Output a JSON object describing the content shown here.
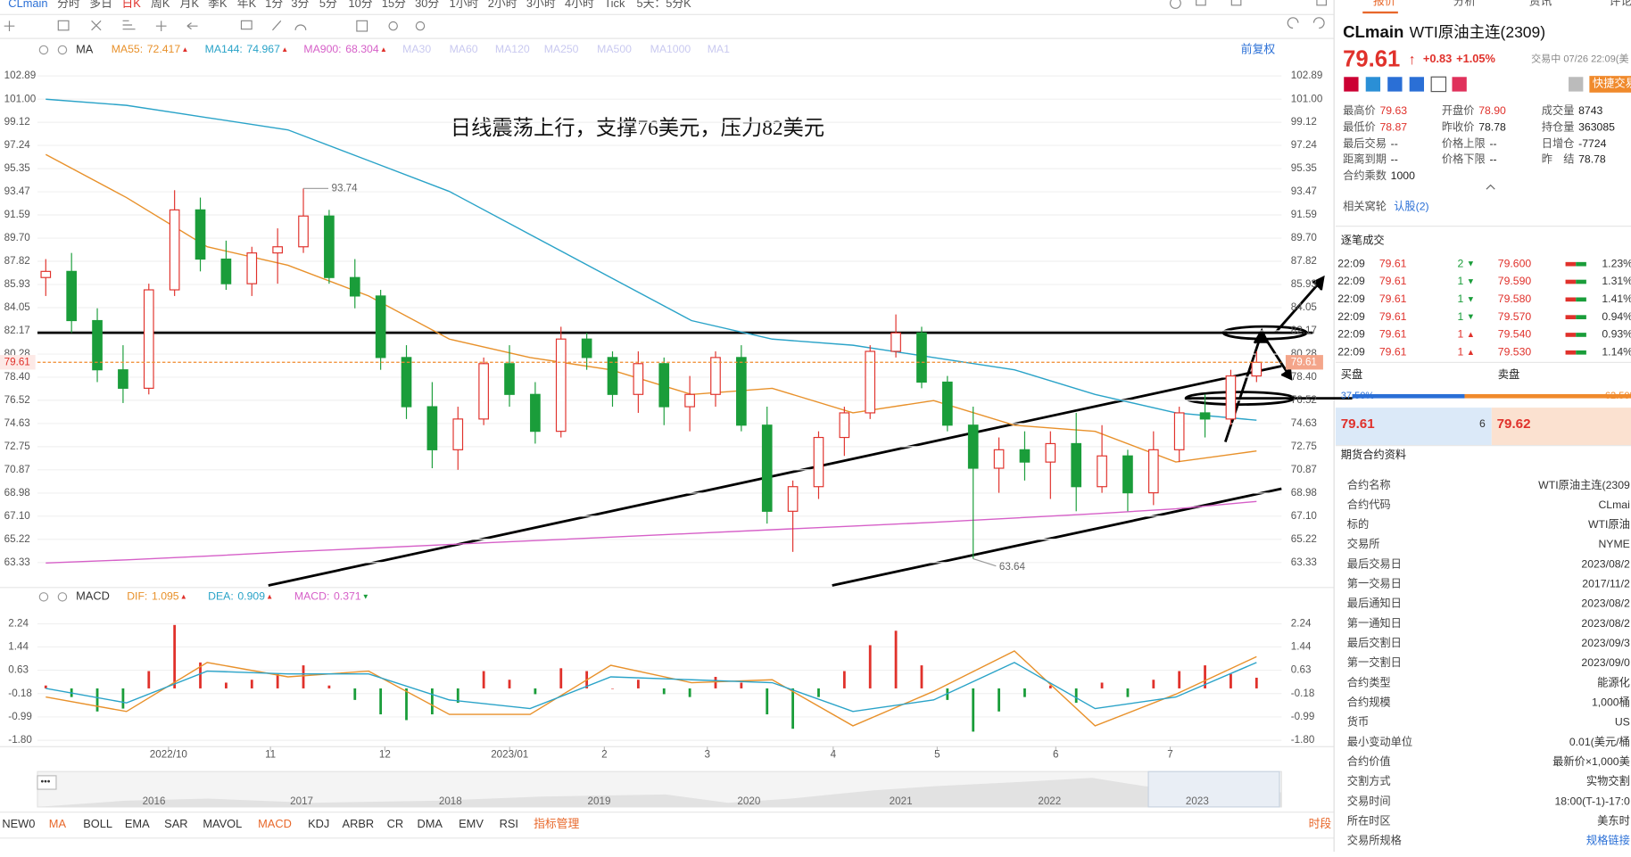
{
  "toolbar": {
    "symbol": "CLmain",
    "periods": [
      "分时",
      "多日",
      "日K",
      "周K",
      "月K",
      "季K",
      "年K",
      "1分",
      "3分",
      "5分",
      "10分",
      "15分",
      "30分",
      "1小时",
      "2小时",
      "3小时",
      "4小时",
      "Tick",
      "5天：5分K"
    ]
  },
  "price_panel": {
    "indicator": "MA",
    "ma_legend": [
      {
        "name": "MA55:",
        "value": 72.417,
        "trend": "▲",
        "color": "#e8912b",
        "values": [
          96.5,
          93,
          89,
          87.5,
          85,
          81.5,
          80,
          79,
          77,
          77.5,
          75.5,
          76.5,
          74.5,
          74,
          71.5,
          72.4
        ]
      },
      {
        "name": "MA144:",
        "value": 74.967,
        "trend": "▲",
        "color": "#2aa3c8",
        "values": [
          101,
          100.5,
          99.5,
          98.5,
          96,
          93.5,
          90,
          86.5,
          83,
          81.5,
          81,
          80,
          79,
          77,
          75.5,
          74.9
        ]
      },
      {
        "name": "MA900:",
        "value": 68.304,
        "trend": "▲",
        "color": "#d660c8",
        "values": [
          63.3,
          63.55,
          63.85,
          64.2,
          64.5,
          64.8,
          65.1,
          65.4,
          65.7,
          66,
          66.3,
          66.6,
          66.95,
          67.3,
          67.7,
          68.3
        ]
      }
    ],
    "ma_inactive": [
      "MA30",
      "MA60",
      "MA120",
      "MA250",
      "MA500",
      "MA1000",
      "MA1"
    ],
    "adjust": "前复权",
    "annotation": "日线震荡上行，支撑76美元，压力82美元",
    "high_label": 93.74,
    "low_label": 63.64,
    "last_price": 79.61,
    "ylim": [
      61.47,
      103.99
    ],
    "yticks": [
      102.89,
      {
        "value": 101,
        "label": "101.00"
      },
      99.12,
      97.24,
      95.35,
      93.47,
      91.59,
      {
        "value": 89.7,
        "label": "89.70"
      },
      87.82,
      85.93,
      84.05,
      82.17,
      80.28,
      {
        "value": 78.4,
        "label": "78.40"
      },
      76.52,
      74.63,
      72.75,
      70.87,
      68.98,
      {
        "value": 67.1,
        "label": "67.10"
      },
      65.22,
      63.33
    ],
    "time_labels": [
      "2022/10",
      "11",
      "12",
      "2023/01",
      "2",
      "3",
      "4",
      "5",
      "6",
      "7"
    ],
    "candles": [
      [
        86.5,
        88,
        85,
        87
      ],
      [
        87,
        88.5,
        82,
        83
      ],
      [
        83,
        84,
        78,
        79
      ],
      [
        79,
        81,
        76.3,
        77.5
      ],
      [
        77.5,
        86,
        77,
        85.5
      ],
      [
        85.5,
        93.6,
        85,
        92
      ],
      [
        92,
        93,
        87,
        88
      ],
      [
        88,
        89.5,
        85.5,
        86
      ],
      [
        86,
        89,
        85,
        88.5
      ],
      [
        88.5,
        90.5,
        86,
        89
      ],
      [
        89,
        93.74,
        88.5,
        91.5
      ],
      [
        91.5,
        92,
        86,
        86.5
      ],
      [
        86.5,
        88,
        84,
        85
      ],
      [
        85,
        85.5,
        79,
        80
      ],
      [
        80,
        81,
        75,
        76
      ],
      [
        76,
        78,
        71,
        72.5
      ],
      [
        72.5,
        76,
        70.87,
        75
      ],
      [
        75,
        80,
        74.5,
        79.5
      ],
      [
        79.5,
        81,
        76,
        77
      ],
      [
        77,
        78,
        73,
        74
      ],
      [
        74,
        82.5,
        73.5,
        81.5
      ],
      [
        81.5,
        82,
        79,
        80
      ],
      [
        80,
        80.5,
        76,
        77
      ],
      [
        77,
        80.5,
        75.5,
        79.5
      ],
      [
        79.5,
        80,
        74.5,
        76
      ],
      [
        76,
        78.5,
        74,
        77
      ],
      [
        77,
        80.5,
        76,
        80
      ],
      [
        80,
        81,
        74,
        74.5
      ],
      [
        74.5,
        76,
        66.5,
        67.5
      ],
      [
        67.5,
        70,
        64.2,
        69.5
      ],
      [
        69.5,
        74,
        68.5,
        73.5
      ],
      [
        73.5,
        76,
        72,
        75.5
      ],
      [
        75.5,
        81,
        75,
        80.5
      ],
      [
        80.5,
        83.5,
        80,
        82
      ],
      [
        82,
        82.5,
        77.5,
        78
      ],
      [
        78,
        78.5,
        74,
        74.5
      ],
      [
        74.5,
        76,
        63.64,
        71
      ],
      [
        71,
        73.5,
        69,
        72.5
      ],
      [
        72.5,
        74,
        70,
        71.5
      ],
      [
        71.5,
        74,
        68.5,
        73
      ],
      [
        73,
        75.5,
        67.5,
        69.5
      ],
      [
        69.5,
        74.5,
        69,
        72
      ],
      [
        72,
        72.5,
        67.5,
        69
      ],
      [
        69,
        74,
        68,
        72.5
      ],
      [
        72.5,
        76,
        71.5,
        75.5
      ],
      [
        75.5,
        77,
        73.5,
        75
      ],
      [
        75,
        79,
        74.5,
        78.5
      ],
      [
        78.5,
        80.5,
        78,
        79.61
      ]
    ]
  },
  "macd_panel": {
    "name": "MACD",
    "legend": [
      {
        "name": "DIF:",
        "value": 1.095,
        "trend": "▲",
        "color": "#e8912b",
        "values": [
          -0.3,
          -0.8,
          0.9,
          0.4,
          0.6,
          -0.9,
          -0.9,
          0.8,
          0.2,
          0.3,
          -1.3,
          -0.1,
          1.3,
          -1.3,
          -0.2,
          1.1
        ]
      },
      {
        "name": "DEA:",
        "value": 0.909,
        "trend": "▲",
        "color": "#2aa3c8",
        "values": [
          0,
          -0.5,
          0.6,
          0.5,
          0.5,
          -0.4,
          -0.7,
          0.4,
          0.3,
          0.2,
          -0.8,
          -0.4,
          0.9,
          -0.7,
          -0.3,
          0.9
        ]
      },
      {
        "name": "MACD:",
        "value": 0.371,
        "trend": "▼",
        "color": "#d660c8",
        "histogram": [
          0.1,
          -0.3,
          -0.8,
          -0.7,
          0.6,
          2.2,
          0.9,
          0.2,
          0.3,
          0.5,
          0.8,
          0.1,
          -0.4,
          -0.9,
          -1.1,
          -0.9,
          -0.5,
          0.6,
          0.3,
          -0.2,
          0.7,
          0.6,
          0,
          0.3,
          -0.2,
          -0.3,
          0.4,
          0.2,
          -0.9,
          -1.4,
          -0.3,
          0.6,
          1.5,
          2,
          0.8,
          -0.4,
          -1.5,
          -0.8,
          -0.3,
          0.1,
          -0.5,
          0.2,
          -0.3,
          0.3,
          0.6,
          0.8,
          0.5,
          0.371
        ]
      }
    ],
    "ylim": [
      -2.02,
      2.67
    ],
    "yticks": [
      2.24,
      1.44,
      0.63,
      -0.18,
      -0.99,
      {
        "value": -1.8,
        "label": "-1.80"
      }
    ]
  },
  "navigator": {
    "years": [
      "2016",
      "2017",
      "2018",
      "2019",
      "2020",
      "2021",
      "2022",
      "2023"
    ]
  },
  "indicator_bar": {
    "items": [
      "NEW0",
      "MA",
      "BOLL",
      "EMA",
      "SAR",
      "MAVOL",
      "MACD",
      "KDJ",
      "ARBR",
      "CR",
      "DMA",
      "EMV",
      "RSI",
      "指标管理"
    ],
    "period_button": "时段"
  },
  "quote": {
    "tabs": [
      "报价",
      "分析",
      "资讯",
      "评论"
    ],
    "symbol": "CLmain",
    "name": "WTI原油主连(2309)",
    "price": "79.61",
    "arrow": "↑",
    "change": "+0.83",
    "change_pct": "+1.05%",
    "status": "交易中 07/26 22:09(美",
    "quick_trade": "快捷交易",
    "stats": [
      {
        "label": "最高价",
        "value": "79.63",
        "color": "#e0312b"
      },
      {
        "label": "开盘价",
        "value": "78.90",
        "color": "#e0312b"
      },
      {
        "label": "成交量",
        "value": "8743"
      },
      {
        "label": "最低价",
        "value": "78.87",
        "color": "#e0312b"
      },
      {
        "label": "昨收价",
        "value": "78.78"
      },
      {
        "label": "持仓量",
        "value": "363085"
      },
      {
        "label": "最后交易",
        "value": "--"
      },
      {
        "label": "价格上限",
        "value": "--"
      },
      {
        "label": "日增仓",
        "value": "-7724"
      },
      {
        "label": "距离到期",
        "value": "--"
      },
      {
        "label": "价格下限",
        "value": "--"
      },
      {
        "label": "昨　结",
        "value": "78.78"
      },
      {
        "label": "合约乘数",
        "value": "1000"
      }
    ],
    "warrant": {
      "label": "相关窝轮",
      "link": "认股(2)"
    },
    "trades": {
      "title": "逐笔成交",
      "rows": [
        {
          "time": "22:09",
          "price": "79.61",
          "qty": "2",
          "dir": "▼",
          "color": "#1a9d3a",
          "quote": "79.600",
          "pct": "1.23%"
        },
        {
          "time": "22:09",
          "price": "79.61",
          "qty": "1",
          "dir": "▼",
          "color": "#1a9d3a",
          "quote": "79.590",
          "pct": "1.31%"
        },
        {
          "time": "22:09",
          "price": "79.61",
          "qty": "1",
          "dir": "▼",
          "color": "#1a9d3a",
          "quote": "79.580",
          "pct": "1.41%"
        },
        {
          "time": "22:09",
          "price": "79.61",
          "qty": "1",
          "dir": "▼",
          "color": "#1a9d3a",
          "quote": "79.570",
          "pct": "0.94%"
        },
        {
          "time": "22:09",
          "price": "79.61",
          "qty": "1",
          "dir": "▲",
          "color": "#e0312b",
          "quote": "79.540",
          "pct": "0.93%"
        },
        {
          "time": "22:09",
          "price": "79.61",
          "qty": "1",
          "dir": "▲",
          "color": "#e0312b",
          "quote": "79.530",
          "pct": "1.14%"
        }
      ]
    },
    "book": {
      "buy": "买盘",
      "sell": "卖盘",
      "buy_ratio": "37.50%",
      "sell_ratio": "62.50%",
      "bid": "79.61",
      "bid_size": "6",
      "ask": "79.62"
    },
    "contract": {
      "title": "期货合约资料",
      "rows": [
        [
          "合约名称",
          "WTI原油主连(2309"
        ],
        [
          "合约代码",
          "CLmai"
        ],
        [
          "标的",
          "WTI原油"
        ],
        [
          "交易所",
          "NYME"
        ],
        [
          "最后交易日",
          "2023/08/2"
        ],
        [
          "第一交易日",
          "2017/11/2"
        ],
        [
          "最后通知日",
          "2023/08/2"
        ],
        [
          "第一通知日",
          "2023/08/2"
        ],
        [
          "最后交割日",
          "2023/09/3"
        ],
        [
          "第一交割日",
          "2023/09/0"
        ],
        [
          "合约类型",
          "能源化"
        ],
        [
          "合约规模",
          "1,000桶"
        ],
        [
          "货币",
          "US"
        ],
        [
          "最小变动单位",
          "0.01(美元/桶"
        ],
        [
          "合约价值",
          "最新价×1,000美"
        ],
        [
          "交割方式",
          "实物交割"
        ],
        [
          "交易时间",
          "18:00(T-1)-17:0"
        ],
        [
          "所在时区",
          "美东时"
        ],
        [
          "交易所规格",
          "规格链接"
        ]
      ]
    }
  }
}
